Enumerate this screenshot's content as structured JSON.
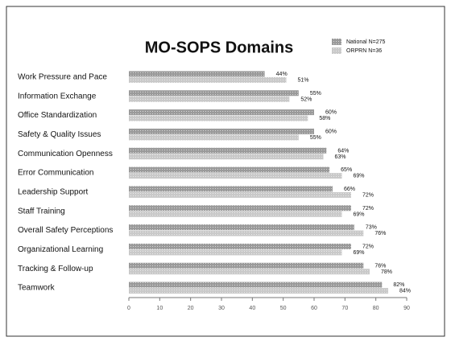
{
  "chart_data": {
    "type": "bar",
    "orientation": "horizontal",
    "title": "MO-SOPS Domains",
    "categories": [
      "Work Pressure and Pace",
      "Information Exchange",
      "Office Standardization",
      "Safety & Quality Issues",
      "Communication Openness",
      "Error Communication",
      "Leadership Support",
      "Staff Training",
      "Overall Safety Perceptions",
      "Organizational Learning",
      "Tracking & Follow-up",
      "Teamwork"
    ],
    "series": [
      {
        "name": "National N=275",
        "color": "#9a9a9a",
        "values": [
          44,
          55,
          60,
          60,
          64,
          65,
          66,
          72,
          73,
          72,
          76,
          82
        ],
        "value_labels": [
          "44%",
          "55%",
          "60%",
          "60%",
          "64%",
          "65%",
          "66%",
          "72%",
          "73%",
          "72%",
          "76%",
          "82%"
        ]
      },
      {
        "name": "ORPRN N=36",
        "color": "#c9c9c9",
        "values": [
          51,
          52,
          58,
          55,
          63,
          69,
          72,
          69,
          76,
          69,
          78,
          84
        ],
        "value_labels": [
          "51%",
          "52%",
          "58%",
          "55%",
          "63%",
          "69%",
          "72%",
          "69%",
          "76%",
          "69%",
          "78%",
          "84%"
        ]
      }
    ],
    "xlim": [
      0,
      90
    ],
    "xticks": [
      0,
      10,
      20,
      30,
      40,
      50,
      60,
      70,
      80,
      90
    ]
  }
}
